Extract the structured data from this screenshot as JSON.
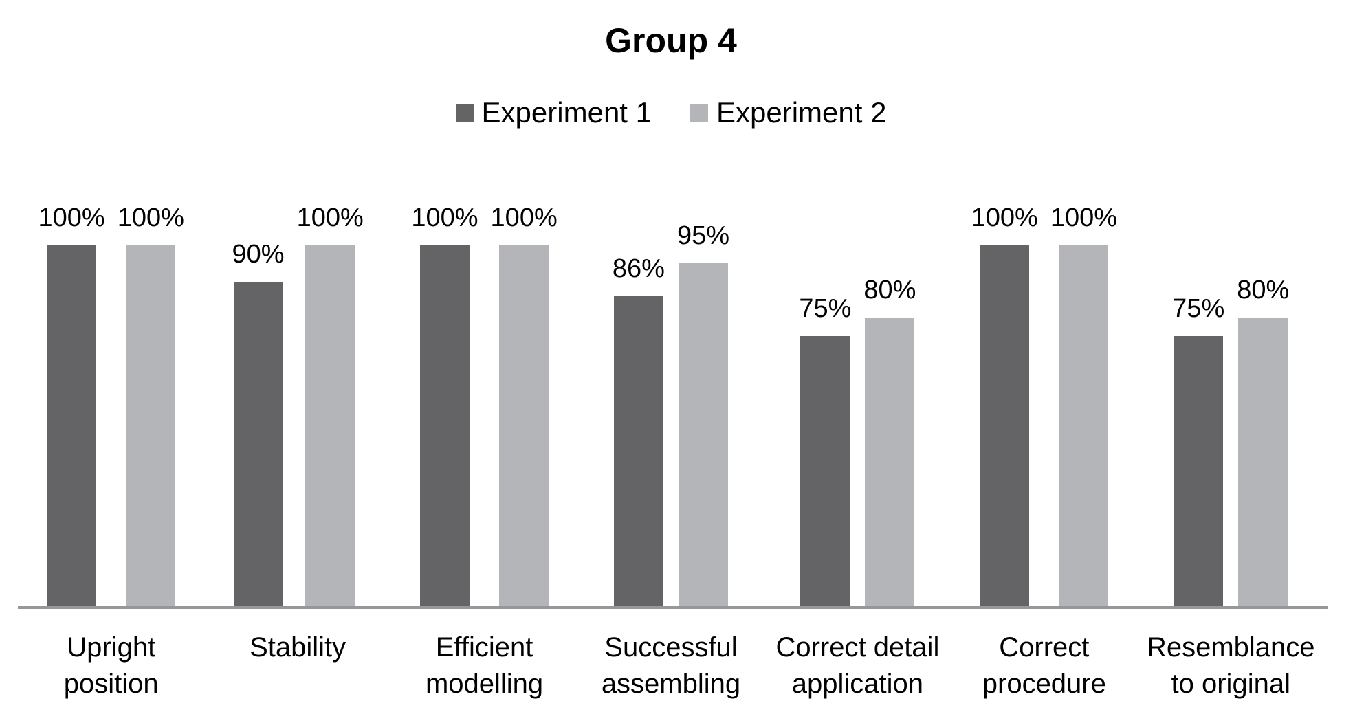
{
  "title": "Group 4",
  "legend": {
    "items": [
      {
        "label": "Experiment 1",
        "color": "#646467"
      },
      {
        "label": "Experiment 2",
        "color": "#b3b5b8"
      }
    ]
  },
  "chart_data": {
    "type": "bar",
    "title": "Group 4",
    "categories": [
      "Upright\nposition",
      "Stability",
      "Efficient\nmodelling",
      "Successful\nassembling",
      "Correct detail\napplication",
      "Correct\nprocedure",
      "Resemblance\nto original"
    ],
    "series": [
      {
        "name": "Experiment 1",
        "color": "#646467",
        "values": [
          100,
          90,
          100,
          86,
          75,
          100,
          75
        ]
      },
      {
        "name": "Experiment 2",
        "color": "#b3b5b8",
        "values": [
          100,
          100,
          100,
          95,
          80,
          100,
          80
        ]
      }
    ],
    "value_suffix": "%",
    "data_labels": true,
    "xlabel": "",
    "ylabel": "",
    "ylim": [
      0,
      100
    ],
    "grid": false,
    "y_axis_visible": false,
    "legend_position": "top"
  },
  "colors": {
    "axis_line": "#95979a",
    "text": "#000000",
    "background": "#ffffff"
  }
}
